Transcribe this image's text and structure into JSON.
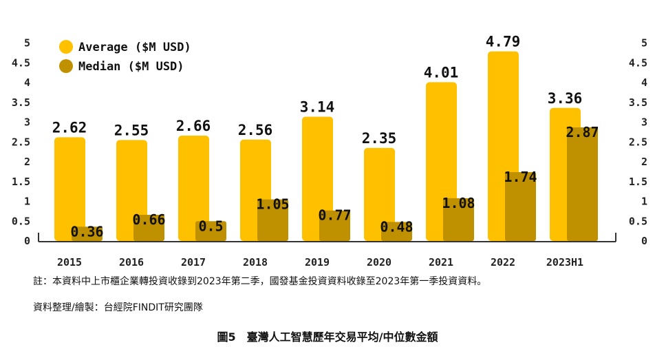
{
  "chart_data": {
    "type": "bar",
    "categories": [
      "2015",
      "2016",
      "2017",
      "2018",
      "2019",
      "2020",
      "2021",
      "2022",
      "2023H1"
    ],
    "series": [
      {
        "name": "Average ($M USD)",
        "values": [
          2.62,
          2.55,
          2.66,
          2.56,
          3.14,
          2.35,
          4.01,
          4.79,
          3.36
        ],
        "color": "#FFC000"
      },
      {
        "name": "Median ($M USD)",
        "values": [
          0.36,
          0.66,
          0.5,
          1.05,
          0.77,
          0.48,
          1.08,
          1.74,
          2.87
        ],
        "color": "#BF9000"
      }
    ],
    "y_ticks": [
      "0",
      "0.5",
      "1",
      "1.5",
      "2",
      "2.5",
      "3",
      "3.5",
      "4",
      "4.5",
      "5"
    ],
    "ylim": [
      0,
      5
    ],
    "grid": false,
    "legend_position": "top-left"
  },
  "notes": {
    "footnote": "註：本資料中上市櫃企業轉投資收錄到2023年第二季，國發基金投資資料收錄至2023年第一季投資資料。",
    "source": "資料整理/繪製：台經院FINDIT研究團隊"
  },
  "caption": {
    "figure_no": "圖5",
    "title": "臺灣人工智慧歷年交易平均/中位數金額"
  }
}
